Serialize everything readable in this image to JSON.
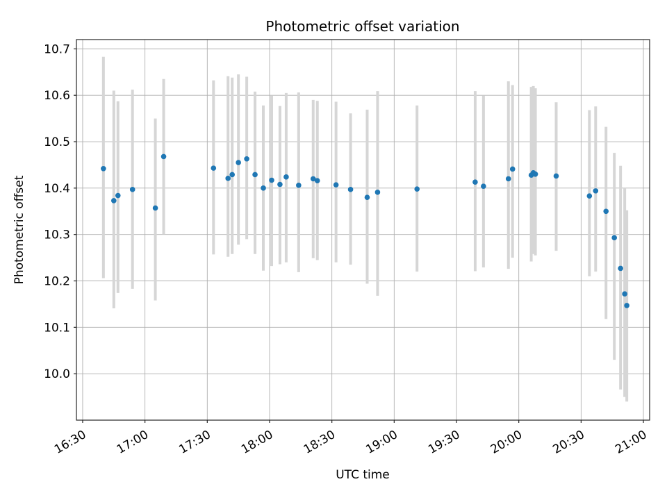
{
  "chart_data": {
    "type": "scatter",
    "title": "Photometric offset variation",
    "xlabel": "UTC time",
    "ylabel": "Photometric offset",
    "x_tick_labels": [
      "16:30",
      "17:00",
      "17:30",
      "18:00",
      "18:30",
      "19:00",
      "19:30",
      "20:00",
      "20:30",
      "21:00"
    ],
    "yticks": [
      10.0,
      10.1,
      10.2,
      10.3,
      10.4,
      10.5,
      10.6,
      10.7
    ],
    "xlim": [
      "16:27",
      "21:03"
    ],
    "ylim": [
      9.9,
      10.72
    ],
    "grid": true,
    "legend": "none",
    "colors": {
      "marker": "#1f77b4",
      "errorbar": "#d6d6d6",
      "grid": "#b0b0b0",
      "axis": "#262626",
      "tick_text": "#000000"
    },
    "point_format": [
      "utc_time",
      "value",
      "err_low_abs",
      "err_high_abs"
    ],
    "series": [
      {
        "name": "photometric offset",
        "points": [
          [
            "16:40",
            10.442,
            10.206,
            10.683
          ],
          [
            "16:45",
            10.373,
            10.141,
            10.61
          ],
          [
            "16:47",
            10.384,
            10.174,
            10.587
          ],
          [
            "16:54",
            10.397,
            10.183,
            10.612
          ],
          [
            "17:05",
            10.357,
            10.158,
            10.55
          ],
          [
            "17:09",
            10.468,
            10.3,
            10.635
          ],
          [
            "17:33",
            10.443,
            10.257,
            10.632
          ],
          [
            "17:40",
            10.421,
            10.252,
            10.641
          ],
          [
            "17:42",
            10.429,
            10.258,
            10.638
          ],
          [
            "17:45",
            10.455,
            10.278,
            10.645
          ],
          [
            "17:49",
            10.463,
            10.29,
            10.64
          ],
          [
            "17:53",
            10.429,
            10.258,
            10.608
          ],
          [
            "17:57",
            10.4,
            10.222,
            10.578
          ],
          [
            "18:01",
            10.417,
            10.232,
            10.6
          ],
          [
            "18:05",
            10.408,
            10.236,
            10.577
          ],
          [
            "18:08",
            10.424,
            10.24,
            10.605
          ],
          [
            "18:14",
            10.406,
            10.219,
            10.606
          ],
          [
            "18:21",
            10.42,
            10.249,
            10.59
          ],
          [
            "18:23",
            10.416,
            10.245,
            10.588
          ],
          [
            "18:32",
            10.407,
            10.24,
            10.586
          ],
          [
            "18:39",
            10.397,
            10.235,
            10.561
          ],
          [
            "18:47",
            10.38,
            10.194,
            10.569
          ],
          [
            "18:52",
            10.391,
            10.168,
            10.609
          ],
          [
            "19:11",
            10.398,
            10.22,
            10.578
          ],
          [
            "19:39",
            10.413,
            10.221,
            10.609
          ],
          [
            "19:43",
            10.404,
            10.229,
            10.599
          ],
          [
            "19:55",
            10.42,
            10.226,
            10.63
          ],
          [
            "19:57",
            10.441,
            10.25,
            10.622
          ],
          [
            "20:06",
            10.428,
            10.242,
            10.618
          ],
          [
            "20:07",
            10.433,
            10.258,
            10.62
          ],
          [
            "20:08",
            10.43,
            10.255,
            10.615
          ],
          [
            "20:18",
            10.426,
            10.265,
            10.585
          ],
          [
            "20:34",
            10.383,
            10.21,
            10.568
          ],
          [
            "20:37",
            10.394,
            10.22,
            10.576
          ],
          [
            "20:42",
            10.35,
            10.118,
            10.532
          ],
          [
            "20:46",
            10.293,
            10.03,
            10.476
          ],
          [
            "20:49",
            10.227,
            9.966,
            10.448
          ],
          [
            "20:51",
            10.172,
            9.95,
            10.4
          ],
          [
            "20:52",
            10.147,
            9.94,
            10.352
          ]
        ]
      }
    ]
  }
}
